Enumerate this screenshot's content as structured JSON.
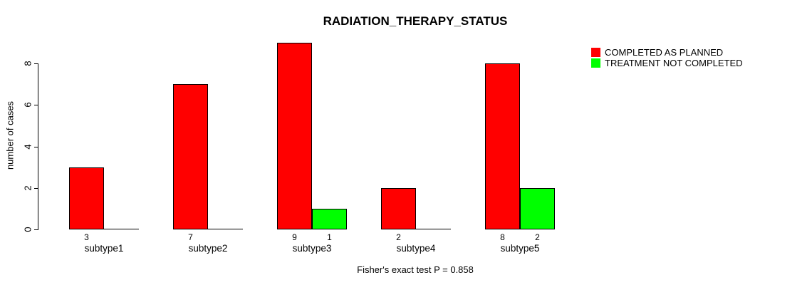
{
  "chart_data": {
    "type": "bar",
    "title": "RADIATION_THERAPY_STATUS",
    "ylabel": "number of cases",
    "xlabel": "",
    "footer": "Fisher's exact test P = 0.858",
    "categories": [
      "subtype1",
      "subtype2",
      "subtype3",
      "subtype4",
      "subtype5"
    ],
    "series": [
      {
        "name": "COMPLETED AS PLANNED",
        "color": "#FF0000",
        "values": [
          3,
          7,
          9,
          2,
          8
        ]
      },
      {
        "name": "TREATMENT NOT COMPLETED",
        "color": "#00FF00",
        "values": [
          0,
          0,
          1,
          0,
          2
        ]
      }
    ],
    "visible_bar_value_labels": [
      "3",
      "7",
      "9",
      "1",
      "2",
      "8",
      "2"
    ],
    "yticks": [
      "0",
      "2",
      "4",
      "6",
      "8"
    ],
    "ylim": [
      0,
      9
    ],
    "grid": false,
    "legend_position": "top-right",
    "background_color": "#FFFFFF",
    "axis_color": "#000000"
  }
}
